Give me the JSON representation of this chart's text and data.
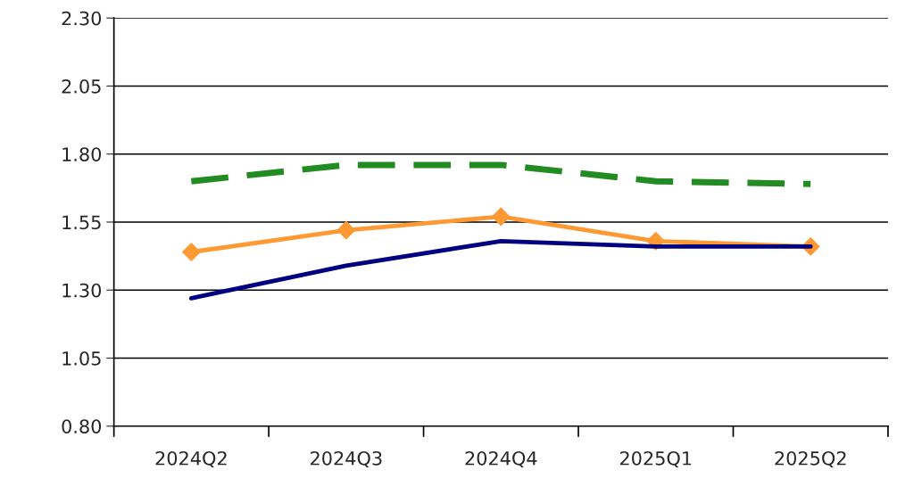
{
  "chart_data": {
    "type": "line",
    "categories": [
      "2024Q2",
      "2024Q3",
      "2024Q4",
      "2025Q1",
      "2025Q2"
    ],
    "series": [
      {
        "color": "#000080",
        "values": [
          1.27,
          1.39,
          1.48,
          1.46,
          1.46
        ],
        "marker": "none",
        "line_style": "solid"
      },
      {
        "color": "#ff9933",
        "values": [
          1.44,
          1.52,
          1.57,
          1.48,
          1.46
        ],
        "marker": "diamond",
        "line_style": "solid"
      },
      {
        "color": "#228b22",
        "values": [
          1.7,
          1.76,
          1.76,
          1.7,
          1.69
        ],
        "marker": "none",
        "line_style": "dashed"
      }
    ],
    "ylim": [
      0.8,
      2.3
    ],
    "yticks": [
      {
        "value": 0.8,
        "label": "0.80"
      },
      {
        "value": 1.05,
        "label": "1.05"
      },
      {
        "value": 1.3,
        "label": "1.30"
      },
      {
        "value": 1.55,
        "label": "1.55"
      },
      {
        "value": 1.8,
        "label": "1.80"
      },
      {
        "value": 2.05,
        "label": "2.05"
      },
      {
        "value": 2.3,
        "label": "2.30"
      }
    ],
    "grid": "y",
    "legend": false
  }
}
